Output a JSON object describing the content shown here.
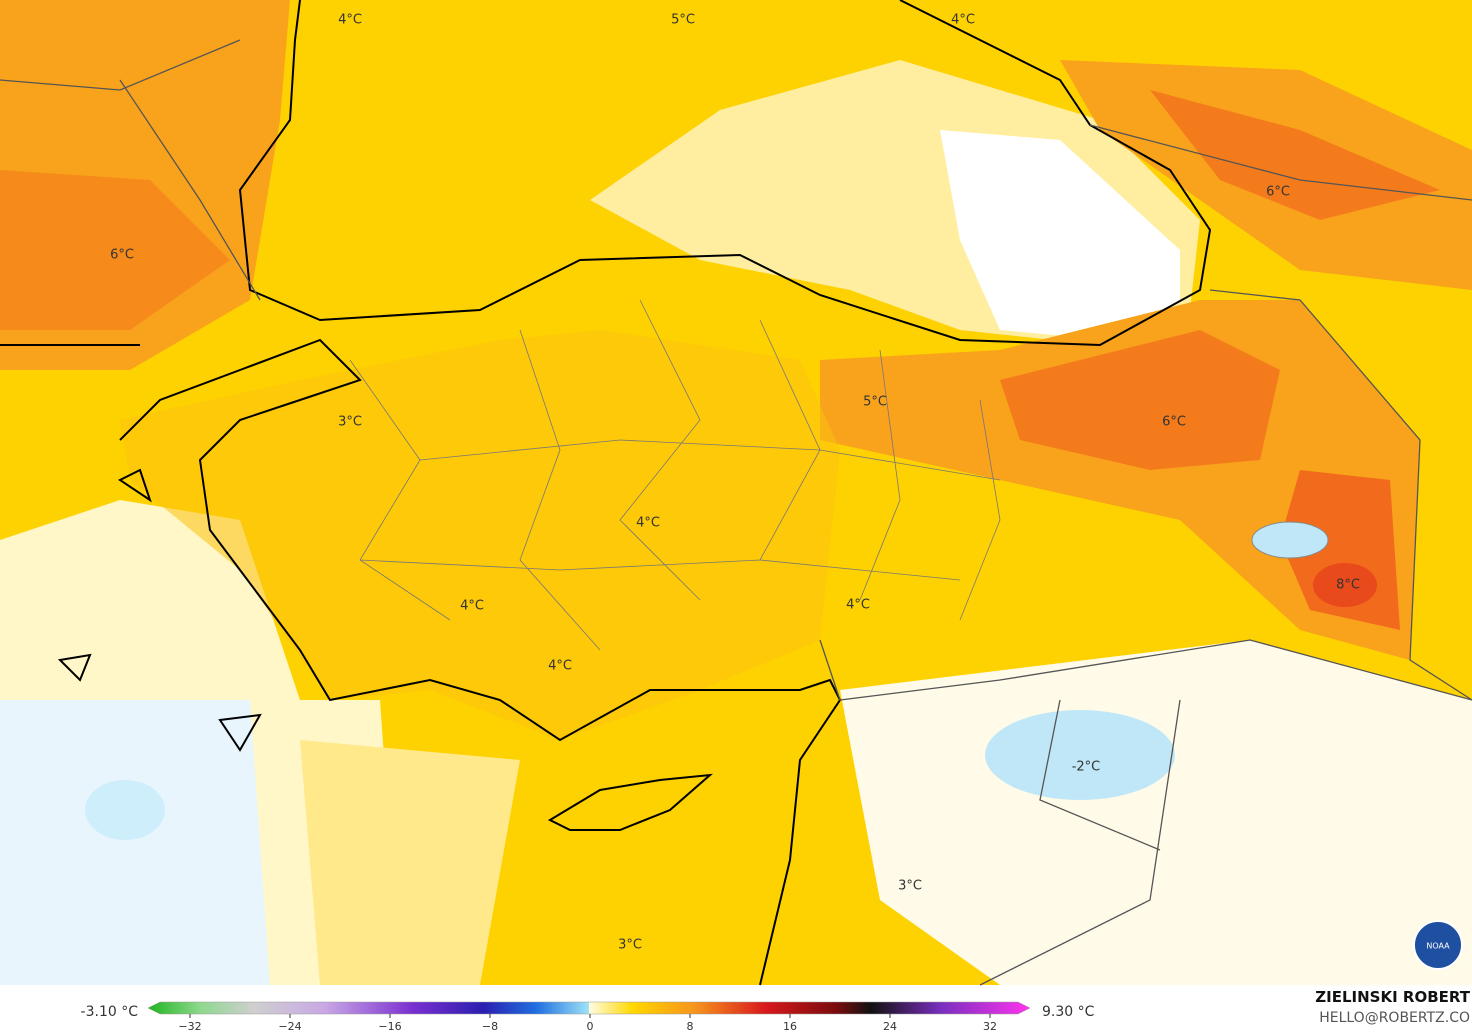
{
  "map": {
    "labels": [
      "4°C",
      "5°C",
      "4°C",
      "6°C",
      "6°C",
      "5°C",
      "3°C",
      "6°C",
      "4°C",
      "4°C",
      "4°C",
      "8°C",
      "4°C",
      "-2°C",
      "3°C",
      "3°C"
    ]
  },
  "legend": {
    "min": "-3.10 °C",
    "max": "9.30 °C",
    "ticks": [
      "−32",
      "−24",
      "−16",
      "−8",
      "0",
      "8",
      "16",
      "24",
      "32"
    ]
  },
  "credit": {
    "name": "ZIELINSKI ROBERT",
    "email": "HELLO@ROBERTZ.CO",
    "logo": "NOAA"
  }
}
